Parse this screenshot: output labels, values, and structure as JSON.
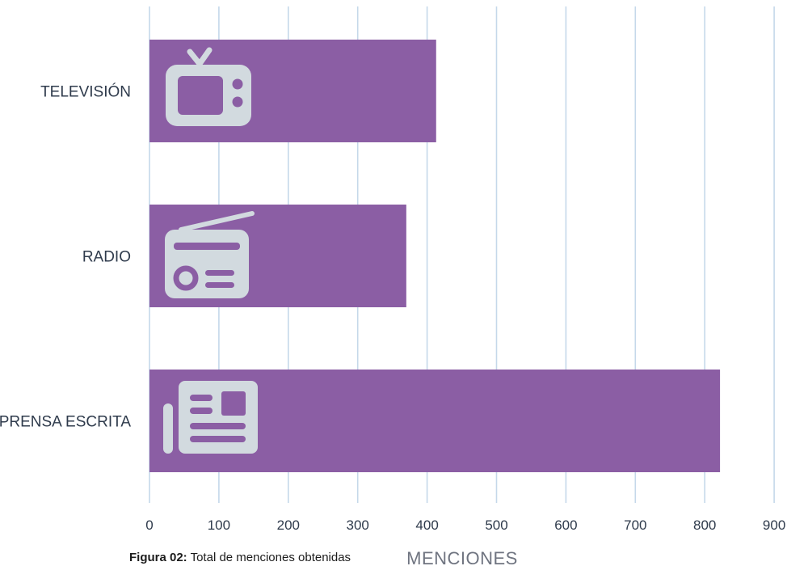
{
  "chart_data": {
    "type": "bar",
    "orientation": "horizontal",
    "categories": [
      "TELEVISIÓN",
      "RADIO",
      "PRENSA ESCRITA"
    ],
    "values": [
      413,
      370,
      822
    ],
    "category_icons": [
      "tv-icon",
      "radio-icon",
      "newspaper-icon"
    ],
    "xlabel": "MENCIONES",
    "xlim": [
      0,
      900
    ],
    "xticks": [
      0,
      100,
      200,
      300,
      400,
      500,
      600,
      700,
      800,
      900
    ],
    "grid": "vertical",
    "colors": {
      "bar": "#8b5ea4",
      "icon": "#d2dadf",
      "grid": "#c5d8ea"
    }
  },
  "caption": {
    "label": "Figura 02:",
    "text": "Total de menciones obtenidas"
  }
}
